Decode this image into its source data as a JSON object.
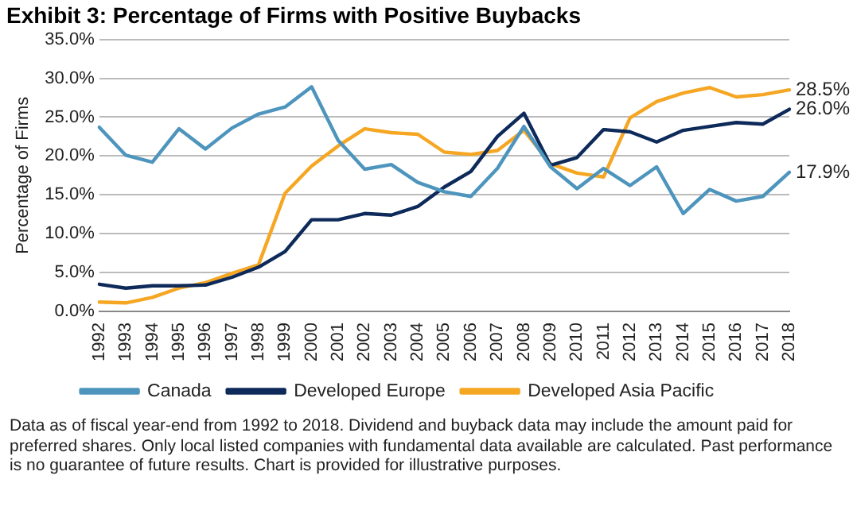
{
  "chart_data": {
    "type": "line",
    "title": "Exhibit 3: Percentage of Firms with Positive Buybacks",
    "ylabel": "Percentage of Firms",
    "categories": [
      "1992",
      "1993",
      "1994",
      "1995",
      "1996",
      "1997",
      "1998",
      "1999",
      "2000",
      "2001",
      "2002",
      "2003",
      "2004",
      "2005",
      "2006",
      "2007",
      "2008",
      "2009",
      "2010",
      "2011",
      "2012",
      "2013",
      "2014",
      "2015",
      "2016",
      "2017",
      "2018"
    ],
    "series": [
      {
        "name": "Canada",
        "color": "#4e95bd",
        "values": [
          23.7,
          20.1,
          19.2,
          23.5,
          20.9,
          23.6,
          25.4,
          26.3,
          28.9,
          22.0,
          18.3,
          18.9,
          16.6,
          15.4,
          14.8,
          18.4,
          23.8,
          18.6,
          15.8,
          18.4,
          16.2,
          18.6,
          12.6,
          15.7,
          14.2,
          14.8,
          17.9
        ],
        "value_labels": [
          null,
          null,
          null,
          null,
          null,
          null,
          null,
          null,
          null,
          null,
          null,
          null,
          null,
          null,
          null,
          null,
          null,
          null,
          null,
          null,
          null,
          null,
          null,
          null,
          null,
          null,
          "17.9%"
        ]
      },
      {
        "name": "Developed Europe",
        "color": "#0d2a5a",
        "values": [
          3.5,
          3.0,
          3.3,
          3.3,
          3.4,
          4.4,
          5.7,
          7.7,
          11.8,
          11.8,
          12.6,
          12.4,
          13.5,
          16.0,
          18.0,
          22.5,
          25.5,
          18.8,
          19.8,
          23.4,
          23.1,
          21.8,
          23.3,
          23.8,
          24.3,
          24.1,
          26.0
        ],
        "value_labels": [
          null,
          null,
          null,
          null,
          null,
          null,
          null,
          null,
          null,
          null,
          null,
          null,
          null,
          null,
          null,
          null,
          null,
          null,
          null,
          null,
          null,
          null,
          null,
          null,
          null,
          null,
          "26.0%"
        ]
      },
      {
        "name": "Developed Asia Pacific",
        "color": "#f5a623",
        "values": [
          1.2,
          1.1,
          1.8,
          3.0,
          3.7,
          4.9,
          6.0,
          15.2,
          18.7,
          21.3,
          23.5,
          23.0,
          22.8,
          20.5,
          20.2,
          20.7,
          23.3,
          19.0,
          17.8,
          17.3,
          24.9,
          27.0,
          28.1,
          28.8,
          27.6,
          27.9,
          28.5
        ],
        "value_labels": [
          null,
          null,
          null,
          null,
          null,
          null,
          null,
          null,
          null,
          null,
          null,
          null,
          null,
          null,
          null,
          null,
          null,
          null,
          null,
          null,
          null,
          null,
          null,
          null,
          null,
          null,
          "28.5%"
        ]
      }
    ],
    "ylim": [
      0,
      35
    ],
    "yticks": [
      {
        "value": 0,
        "label": "0.0%"
      },
      {
        "value": 5,
        "label": "5.0%"
      },
      {
        "value": 10,
        "label": "10.0%"
      },
      {
        "value": 15,
        "label": "15.0%"
      },
      {
        "value": 20,
        "label": "20.0%"
      },
      {
        "value": 25,
        "label": "25.0%"
      },
      {
        "value": 30,
        "label": "30.0%"
      },
      {
        "value": 35,
        "label": "35.0%"
      }
    ],
    "grid": "y",
    "legend": "bottom",
    "marker": "none",
    "line_style": "solid",
    "annotations": [
      "Data as of fiscal year-end from 1992 to 2018. Dividend and buyback data may include the amount paid for preferred shares. Only local listed companies with fundamental data available are calculated. Past performance is no guarantee of future results. Chart is provided for illustrative purposes."
    ]
  }
}
